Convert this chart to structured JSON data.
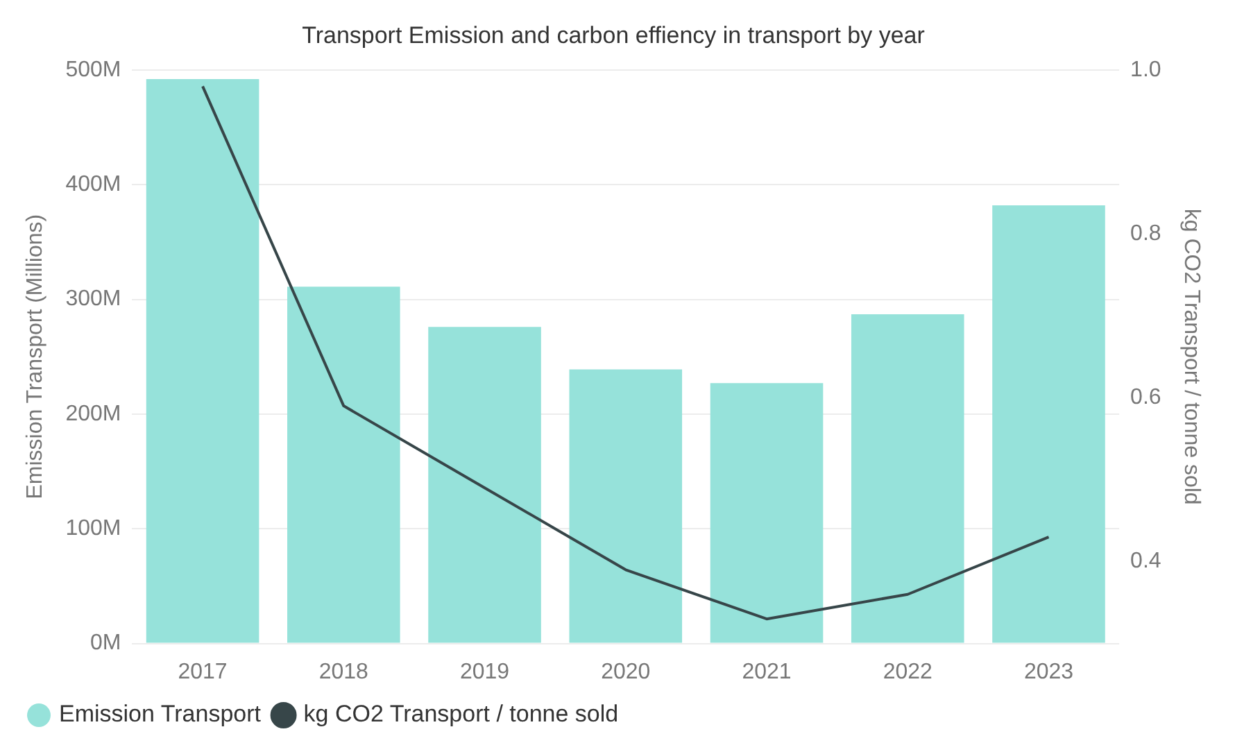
{
  "chart_data": {
    "type": "bar",
    "title": "Transport Emission and carbon effiency in transport by year",
    "ylabel": "Emission Transport (Millions)",
    "y2label": "kg CO2 Transport / tonne sold",
    "categories": [
      "2017",
      "2018",
      "2019",
      "2020",
      "2021",
      "2022",
      "2023"
    ],
    "series": [
      {
        "name": "Emission Transport",
        "color": "#96e2da",
        "values": [
          492,
          311,
          276,
          239,
          227,
          287,
          382
        ]
      },
      {
        "name": "kg CO2 Transport / tonne sold",
        "type": "line",
        "axis": "y2",
        "color": "#374649",
        "values": [
          0.98,
          0.59,
          0.49,
          0.39,
          0.33,
          0.36,
          0.43
        ]
      }
    ],
    "ylim": [
      0,
      500
    ],
    "yticks": [
      {
        "value": 0,
        "label": "0M"
      },
      {
        "value": 100,
        "label": "100M"
      },
      {
        "value": 200,
        "label": "200M"
      },
      {
        "value": 300,
        "label": "300M"
      },
      {
        "value": 400,
        "label": "400M"
      },
      {
        "value": 500,
        "label": "500M"
      }
    ],
    "y2lim": [
      0.3,
      1.0
    ],
    "y2ticks": [
      {
        "value": 0.4,
        "label": "0.4"
      },
      {
        "value": 0.6,
        "label": "0.6"
      },
      {
        "value": 0.8,
        "label": "0.8"
      },
      {
        "value": 1.0,
        "label": "1.0"
      }
    ],
    "grid": "y",
    "legend": "bottom left",
    "marker": "none",
    "line_style": "solid"
  }
}
